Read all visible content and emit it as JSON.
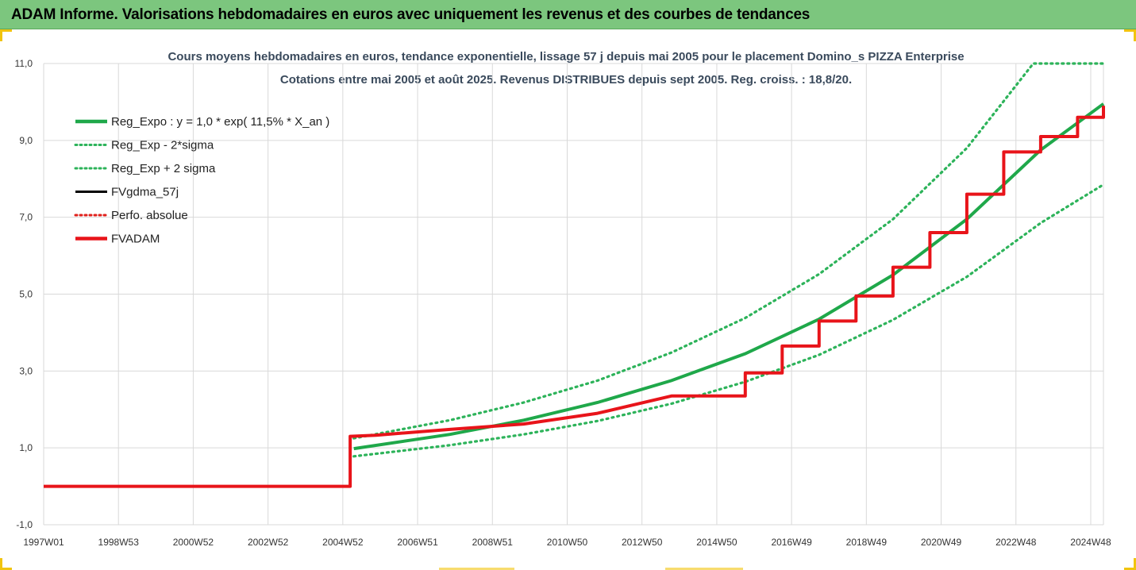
{
  "header": {
    "title": "ADAM Informe. Valorisations hebdomadaires en euros avec uniquement les revenus et des courbes de tendances"
  },
  "colors": {
    "header_bg": "#7cc67e",
    "reg_expo": "#1fa84a",
    "sigma": "#2db35a",
    "fvgdma": "#000000",
    "perfo": "#e0201b",
    "fvadam": "#e8141a",
    "grid": "#d9d9d9"
  },
  "chart_data": {
    "type": "line",
    "title": "Cours moyens hebdomadaires en euros, tendance exponentielle, lissage 57 j depuis mai 2005 pour le placement Domino_s PIZZA Enterprise",
    "subtitle": "Cotations entre mai 2005 et août 2025. Revenus DISTRIBUES depuis sept 2005. Reg. croiss. : 18,8/20.",
    "xlabel": "",
    "ylabel": "",
    "x_ticks": [
      "1997W01",
      "1998W53",
      "2000W52",
      "2002W52",
      "2004W52",
      "2006W51",
      "2008W51",
      "2010W50",
      "2012W50",
      "2014W50",
      "2016W49",
      "2018W49",
      "2020W49",
      "2022W48",
      "2024W48"
    ],
    "x_range": [
      1997.0,
      2025.7
    ],
    "y_ticks": [
      "-1,0",
      "1,0",
      "3,0",
      "5,0",
      "7,0",
      "9,0",
      "11,0"
    ],
    "ylim": [
      -1,
      11
    ],
    "grid": true,
    "legend_position": "top-left",
    "legend": [
      {
        "name": "Reg_Expo : y = 1,0 * exp( 11,5% *  X_an )",
        "style": "solid-thick",
        "color_key": "reg_expo"
      },
      {
        "name": "Reg_Exp - 2*sigma",
        "style": "dotted",
        "color_key": "sigma"
      },
      {
        "name": "Reg_Exp + 2 sigma",
        "style": "dotted",
        "color_key": "sigma"
      },
      {
        "name": "FVgdma_57j",
        "style": "solid",
        "color_key": "fvgdma"
      },
      {
        "name": "Perfo. absolue",
        "style": "dotted",
        "color_key": "perfo"
      },
      {
        "name": "FVADAM",
        "style": "solid-thick",
        "color_key": "fvadam"
      }
    ],
    "series": [
      {
        "name": "Reg_Expo : y = 1,0 * exp( 11,5% *  X_an )",
        "x": [
          2005.4,
          2008,
          2010,
          2012,
          2014,
          2016,
          2018,
          2020,
          2022,
          2024,
          2025.7
        ],
        "y": [
          0.98,
          1.35,
          1.72,
          2.18,
          2.75,
          3.45,
          4.35,
          5.5,
          6.95,
          8.75,
          9.95
        ]
      },
      {
        "name": "Reg_Exp - 2*sigma",
        "x": [
          2005.4,
          2008,
          2010,
          2012,
          2014,
          2016,
          2018,
          2020,
          2022,
          2024,
          2025.7
        ],
        "y": [
          0.78,
          1.07,
          1.35,
          1.7,
          2.15,
          2.72,
          3.42,
          4.33,
          5.45,
          6.85,
          7.85
        ]
      },
      {
        "name": "Reg_Exp + 2 sigma",
        "x": [
          2005.4,
          2008,
          2010,
          2012,
          2014,
          2016,
          2018,
          2020,
          2022,
          2023.8,
          2024.5,
          2025.7
        ],
        "y": [
          1.25,
          1.72,
          2.18,
          2.75,
          3.48,
          4.38,
          5.52,
          6.95,
          8.8,
          11.0,
          11.0,
          11.0
        ]
      },
      {
        "name": "FVADAM",
        "x": [
          1997.0,
          2005.3,
          2005.3,
          2006,
          2008,
          2010,
          2012,
          2014,
          2016,
          2017,
          2018,
          2019,
          2020,
          2021,
          2022,
          2023,
          2024,
          2025,
          2025.7
        ],
        "y": [
          0.0,
          0.0,
          1.3,
          1.33,
          1.48,
          1.62,
          1.9,
          2.35,
          2.95,
          3.65,
          4.3,
          4.95,
          5.7,
          6.6,
          7.6,
          8.7,
          9.1,
          9.6,
          9.9
        ]
      }
    ]
  }
}
